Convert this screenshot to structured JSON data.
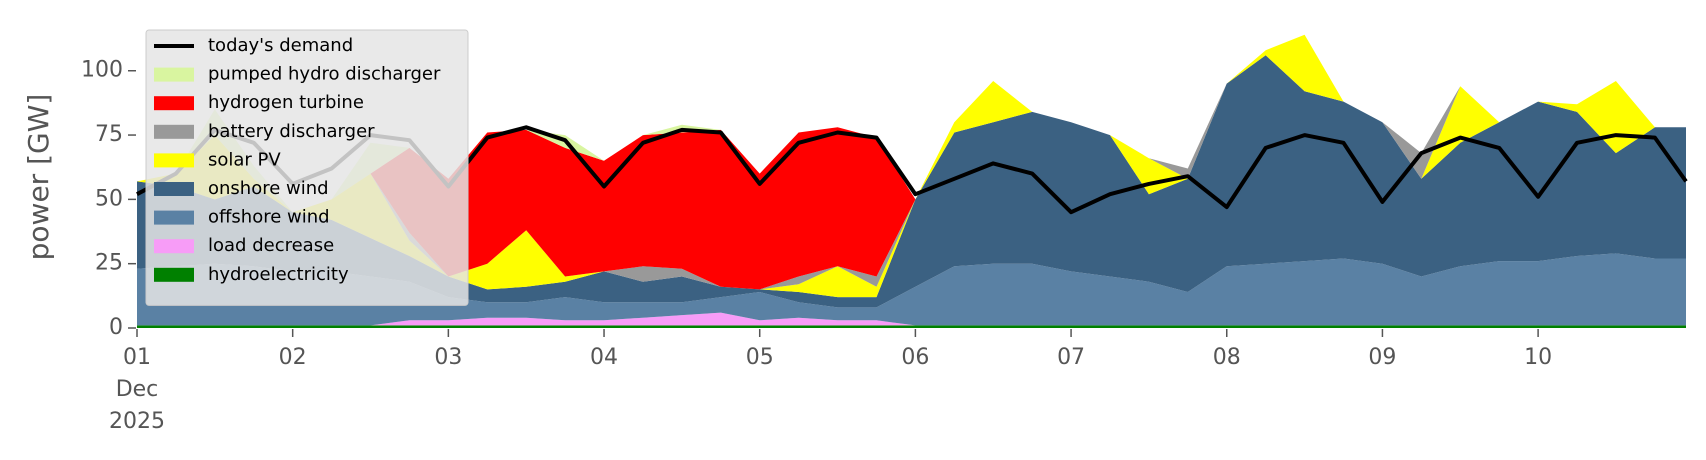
{
  "chart_data": {
    "type": "stacked-area",
    "ylabel": "power [GW]",
    "x": [
      1,
      1.25,
      1.5,
      1.75,
      2,
      2.25,
      2.5,
      2.75,
      3,
      3.25,
      3.5,
      3.75,
      4,
      4.25,
      4.5,
      4.75,
      5,
      5.25,
      5.5,
      5.75,
      6,
      6.25,
      6.5,
      6.75,
      7,
      7.25,
      7.5,
      7.75,
      8,
      8.25,
      8.5,
      8.75,
      9,
      9.25,
      9.5,
      9.75,
      10,
      10.25,
      10.5,
      10.75,
      10.95
    ],
    "xlim": [
      1,
      10.95
    ],
    "xticks": [
      {
        "value": 1,
        "label": "01\nDec\n2025"
      },
      {
        "value": 2,
        "label": "02"
      },
      {
        "value": 3,
        "label": "03"
      },
      {
        "value": 4,
        "label": "04"
      },
      {
        "value": 5,
        "label": "05"
      },
      {
        "value": 6,
        "label": "06"
      },
      {
        "value": 7,
        "label": "07"
      },
      {
        "value": 8,
        "label": "08"
      },
      {
        "value": 9,
        "label": "09"
      },
      {
        "value": 10,
        "label": "10"
      }
    ],
    "ylim": [
      0,
      117
    ],
    "yticks": [
      0,
      25,
      50,
      75,
      100
    ],
    "legend": "upper left",
    "series": [
      {
        "name": "hydroelectricity",
        "color": "#008000",
        "values": [
          1,
          1,
          1,
          1,
          1,
          1,
          1,
          1,
          1,
          1,
          1,
          1,
          1,
          1,
          1,
          1,
          1,
          1,
          1,
          1,
          1,
          1,
          1,
          1,
          1,
          1,
          1,
          1,
          1,
          1,
          1,
          1,
          1,
          1,
          1,
          1,
          1,
          1,
          1,
          1,
          1
        ]
      },
      {
        "name": "load decrease",
        "color": "#f79cf7",
        "values": [
          0,
          0,
          0,
          0,
          0,
          0,
          0,
          2,
          2,
          3,
          3,
          2,
          2,
          3,
          4,
          5,
          2,
          3,
          2,
          2,
          0,
          0,
          0,
          0,
          0,
          0,
          0,
          0,
          0,
          0,
          0,
          0,
          0,
          0,
          0,
          0,
          0,
          0,
          0,
          0,
          0
        ]
      },
      {
        "name": "offshore wind",
        "color": "#5a81a4",
        "values": [
          22,
          23,
          24,
          23,
          21,
          21,
          19,
          15,
          9,
          6,
          6,
          9,
          7,
          6,
          5,
          6,
          11,
          6,
          5,
          5,
          15,
          23,
          24,
          24,
          21,
          19,
          17,
          13,
          23,
          24,
          25,
          26,
          24,
          19,
          23,
          25,
          25,
          27,
          28,
          26,
          26
        ]
      },
      {
        "name": "onshore wind",
        "color": "#3b6182",
        "values": [
          34,
          31,
          25,
          31,
          23,
          20,
          15,
          10,
          8,
          5,
          6,
          6,
          12,
          8,
          10,
          4,
          1,
          4,
          4,
          4,
          34,
          52,
          55,
          59,
          58,
          55,
          34,
          44,
          71,
          81,
          66,
          61,
          55,
          38,
          48,
          54,
          62,
          56,
          39,
          51,
          51
        ]
      },
      {
        "name": "solar PV",
        "color": "#ffff00",
        "values": [
          0,
          5,
          25,
          3,
          0,
          8,
          25,
          6,
          0,
          10,
          22,
          2,
          0,
          0,
          0,
          0,
          0,
          3,
          12,
          4,
          0,
          4,
          16,
          0,
          0,
          0,
          14,
          0,
          0,
          2,
          22,
          0,
          0,
          0,
          22,
          0,
          0,
          3,
          28,
          0,
          0
        ]
      },
      {
        "name": "battery discharger",
        "color": "#999999",
        "values": [
          0,
          0,
          0,
          0,
          0,
          0,
          0,
          3,
          0,
          0,
          0,
          0,
          0,
          6,
          3,
          0,
          0,
          3,
          0,
          4,
          0,
          0,
          0,
          0,
          0,
          0,
          0,
          4,
          0,
          0,
          0,
          0,
          0,
          10,
          0,
          0,
          0,
          0,
          0,
          0,
          0
        ]
      },
      {
        "name": "hydrogen turbine",
        "color": "#ff0000",
        "values": [
          0,
          0,
          0,
          0,
          0,
          0,
          0,
          33,
          38,
          51,
          39,
          50,
          43,
          51,
          53,
          61,
          45,
          56,
          54,
          54,
          0,
          0,
          0,
          0,
          0,
          0,
          0,
          0,
          0,
          0,
          0,
          0,
          0,
          0,
          0,
          0,
          0,
          0,
          0,
          0,
          0
        ]
      },
      {
        "name": "pumped hydro discharger",
        "color": "#d9f5a0",
        "values": [
          0,
          0,
          10,
          5,
          0,
          0,
          12,
          0,
          0,
          0,
          0,
          5,
          0,
          0,
          3,
          0,
          0,
          0,
          0,
          0,
          0,
          0,
          0,
          0,
          0,
          0,
          0,
          0,
          0,
          0,
          0,
          0,
          0,
          0,
          0,
          0,
          0,
          0,
          0,
          0,
          0
        ]
      }
    ],
    "demand": {
      "name": "today's demand",
      "color": "#000000",
      "values": [
        52,
        60,
        77,
        72,
        56,
        62,
        75,
        73,
        55,
        74,
        78,
        73,
        55,
        72,
        77,
        76,
        56,
        72,
        76,
        74,
        52,
        58,
        64,
        60,
        45,
        52,
        56,
        59,
        47,
        70,
        75,
        72,
        49,
        68,
        74,
        70,
        51,
        72,
        75,
        74,
        57
      ]
    }
  }
}
